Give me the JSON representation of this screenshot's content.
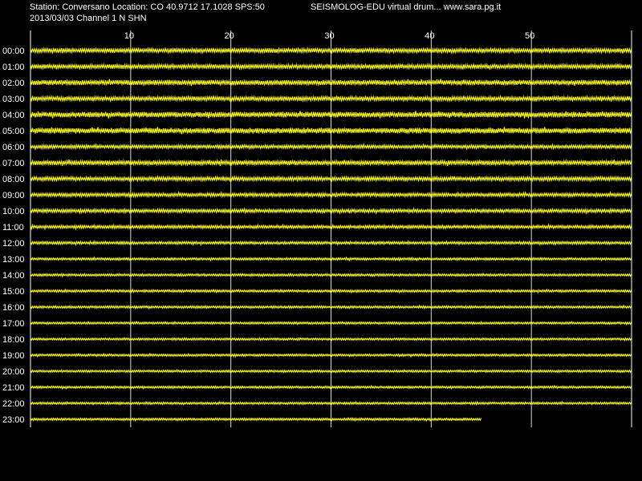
{
  "header": {
    "station_line": "Station: Conversano Location: CO 40.9712 17.1028 SPS:50",
    "date_line": "2013/03/03  Channel 1 N SHN",
    "brand_line": "SEISMOLOG-EDU virtual drum... www.sara.pg.it"
  },
  "colors": {
    "background": "#000000",
    "trace": "#ffff00",
    "grid": "#ffffff",
    "text": "#ffffff"
  },
  "chart_data": {
    "type": "line",
    "title": "",
    "xlabel": "",
    "ylabel": "",
    "x_unit": "minutes",
    "xlim": [
      0,
      60
    ],
    "x_ticks": [
      10,
      20,
      30,
      40,
      50
    ],
    "grid": true,
    "legend": "none",
    "rows": [
      {
        "label": "00:00",
        "end_minute": 60,
        "amplitude": 0.55
      },
      {
        "label": "01:00",
        "end_minute": 60,
        "amplitude": 0.55
      },
      {
        "label": "02:00",
        "end_minute": 60,
        "amplitude": 0.65
      },
      {
        "label": "03:00",
        "end_minute": 60,
        "amplitude": 0.55
      },
      {
        "label": "04:00",
        "end_minute": 60,
        "amplitude": 0.7
      },
      {
        "label": "05:00",
        "end_minute": 60,
        "amplitude": 0.7
      },
      {
        "label": "06:00",
        "end_minute": 60,
        "amplitude": 0.45
      },
      {
        "label": "07:00",
        "end_minute": 60,
        "amplitude": 0.6
      },
      {
        "label": "08:00",
        "end_minute": 60,
        "amplitude": 0.5
      },
      {
        "label": "09:00",
        "end_minute": 60,
        "amplitude": 0.45
      },
      {
        "label": "10:00",
        "end_minute": 60,
        "amplitude": 0.45
      },
      {
        "label": "11:00",
        "end_minute": 60,
        "amplitude": 0.4
      },
      {
        "label": "12:00",
        "end_minute": 60,
        "amplitude": 0.35
      },
      {
        "label": "13:00",
        "end_minute": 60,
        "amplitude": 0.3
      },
      {
        "label": "14:00",
        "end_minute": 60,
        "amplitude": 0.3
      },
      {
        "label": "15:00",
        "end_minute": 60,
        "amplitude": 0.3
      },
      {
        "label": "16:00",
        "end_minute": 60,
        "amplitude": 0.3
      },
      {
        "label": "17:00",
        "end_minute": 60,
        "amplitude": 0.28
      },
      {
        "label": "18:00",
        "end_minute": 60,
        "amplitude": 0.28
      },
      {
        "label": "19:00",
        "end_minute": 60,
        "amplitude": 0.28
      },
      {
        "label": "20:00",
        "end_minute": 60,
        "amplitude": 0.28
      },
      {
        "label": "21:00",
        "end_minute": 60,
        "amplitude": 0.28
      },
      {
        "label": "22:00",
        "end_minute": 60,
        "amplitude": 0.28
      },
      {
        "label": "23:00",
        "end_minute": 45,
        "amplitude": 0.28
      }
    ]
  }
}
